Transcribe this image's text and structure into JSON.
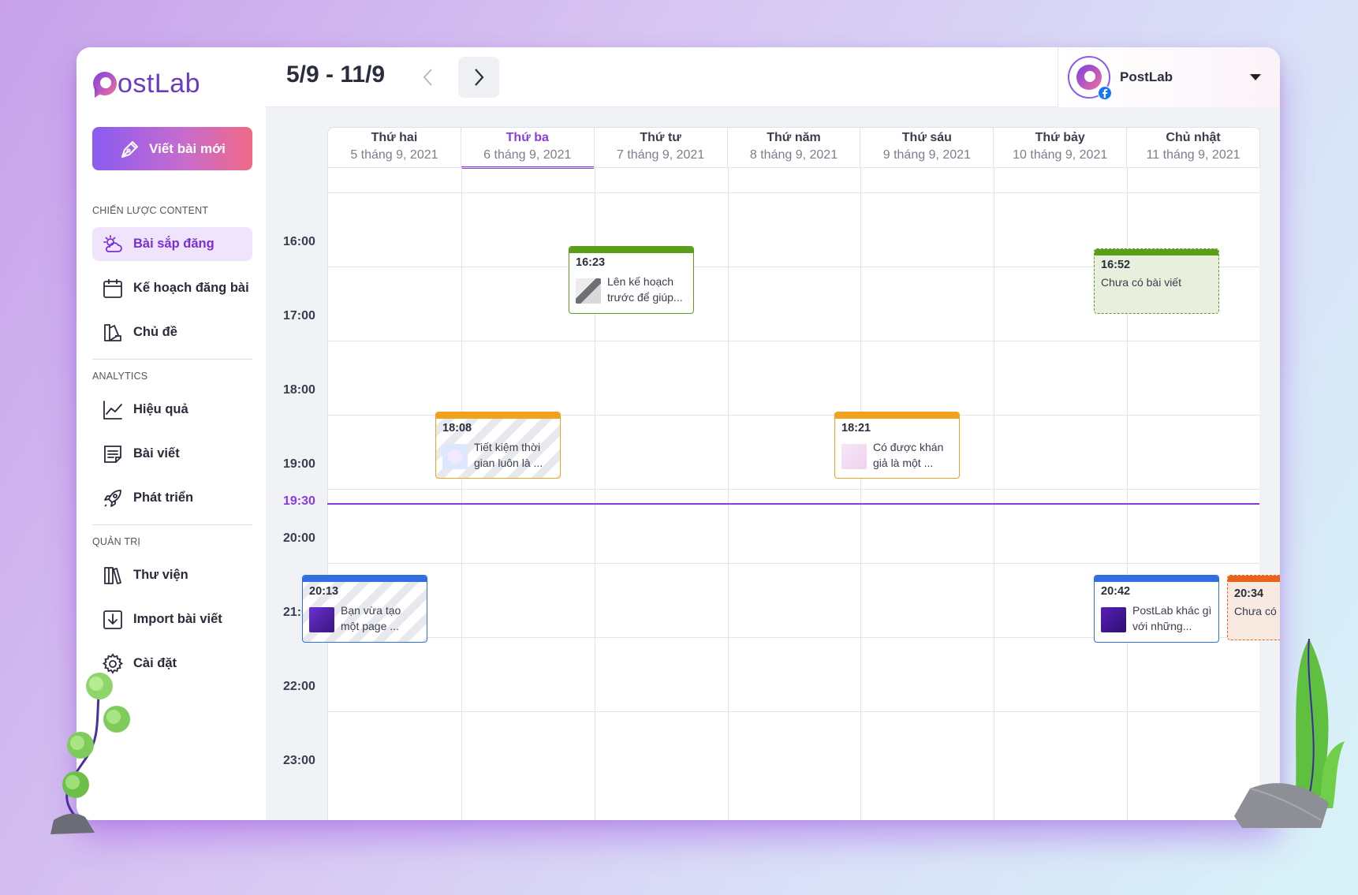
{
  "brand": {
    "logo_text": "ostLab"
  },
  "sidebar": {
    "new_post_label": "Viết bài mới",
    "section_content": "CHIẾN LƯỢC CONTENT",
    "section_analytics": "ANALYTICS",
    "section_admin": "QUẢN TRỊ",
    "items": {
      "upcoming": "Bài sắp đăng",
      "plan": "Kế hoạch đăng bài",
      "topics": "Chủ đề",
      "performance": "Hiệu quả",
      "posts": "Bài viết",
      "growth": "Phát triển",
      "library": "Thư viện",
      "import": "Import bài viết",
      "settings": "Cài đặt"
    }
  },
  "header": {
    "range": "5/9 - 11/9",
    "account_name": "PostLab"
  },
  "days": [
    {
      "name": "Thứ hai",
      "date": "5 tháng 9, 2021"
    },
    {
      "name": "Thứ ba",
      "date": "6 tháng 9, 2021",
      "active": true
    },
    {
      "name": "Thứ tư",
      "date": "7 tháng 9, 2021"
    },
    {
      "name": "Thứ năm",
      "date": "8 tháng 9, 2021"
    },
    {
      "name": "Thứ sáu",
      "date": "9 tháng 9, 2021"
    },
    {
      "name": "Thứ bảy",
      "date": "10 tháng 9, 2021"
    },
    {
      "name": "Chủ nhật",
      "date": "11 tháng 9, 2021"
    }
  ],
  "hours": [
    "16:00",
    "17:00",
    "18:00",
    "19:00",
    "20:00",
    "21:00",
    "22:00",
    "23:00"
  ],
  "now": "19:30",
  "events": {
    "e1": {
      "time": "16:23",
      "text": "Lên kế hoạch trước để giúp...",
      "color": "#5a9e1a"
    },
    "e2": {
      "time": "16:52",
      "text": "Chưa có bài viết",
      "color": "#5a9e1a"
    },
    "e3": {
      "time": "18:08",
      "text": "Tiết kiệm thời gian luôn là ...",
      "color": "#f2a11d"
    },
    "e4": {
      "time": "18:21",
      "text": "Có được khán giả là một ...",
      "color": "#f2a11d"
    },
    "e5": {
      "time": "20:13",
      "text": "Bạn vừa tạo một page ...",
      "color": "#2f6fe0"
    },
    "e6": {
      "time": "20:42",
      "text": "PostLab khác gì với những...",
      "color": "#2f6fe0"
    },
    "e7": {
      "time": "20:34",
      "text": "Chưa có bài viết",
      "color": "#e8641a"
    }
  }
}
